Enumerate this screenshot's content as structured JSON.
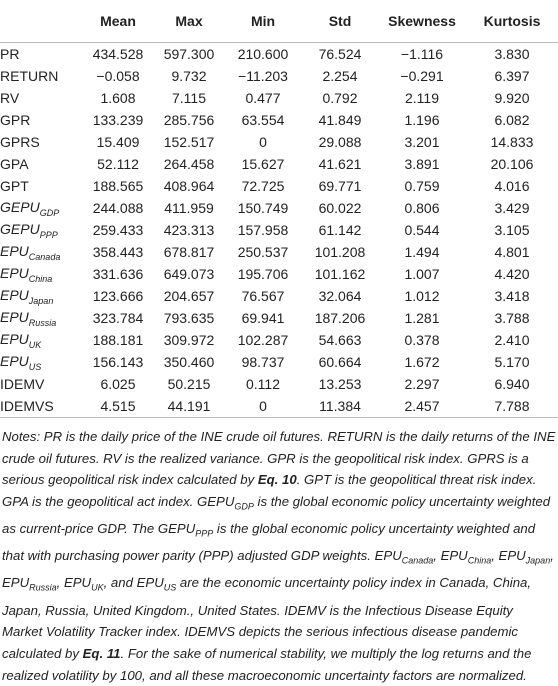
{
  "table": {
    "columns": [
      "Mean",
      "Max",
      "Min",
      "Std",
      "Skewness",
      "Kurtosis"
    ],
    "rows": [
      {
        "label": "PR",
        "cells": [
          "434.528",
          "597.300",
          "210.600",
          "76.524",
          "−1.116",
          "3.830"
        ]
      },
      {
        "label": "RETURN",
        "cells": [
          "−0.058",
          "9.732",
          "−11.203",
          "2.254",
          "−0.291",
          "6.397"
        ]
      },
      {
        "label": "RV",
        "cells": [
          "1.608",
          "7.115",
          "0.477",
          "0.792",
          "2.119",
          "9.920"
        ]
      },
      {
        "label": "GPR",
        "cells": [
          "133.239",
          "285.756",
          "63.554",
          "41.849",
          "1.196",
          "6.082"
        ]
      },
      {
        "label": "GPRS",
        "cells": [
          "15.409",
          "152.517",
          "0",
          "29.088",
          "3.201",
          "14.833"
        ]
      },
      {
        "label": "GPA",
        "cells": [
          "52.112",
          "264.458",
          "15.627",
          "41.621",
          "3.891",
          "20.106"
        ]
      },
      {
        "label": "GPT",
        "cells": [
          "188.565",
          "408.964",
          "72.725",
          "69.771",
          "0.759",
          "4.016"
        ]
      },
      {
        "label": "GEPU",
        "sub": "GDP",
        "cells": [
          "244.088",
          "411.959",
          "150.749",
          "60.022",
          "0.806",
          "3.429"
        ]
      },
      {
        "label": "GEPU",
        "sub": "PPP",
        "cells": [
          "259.433",
          "423.313",
          "157.958",
          "61.142",
          "0.544",
          "3.105"
        ]
      },
      {
        "label": "EPU",
        "sub": "Canada",
        "cells": [
          "358.443",
          "678.817",
          "250.537",
          "101.208",
          "1.494",
          "4.801"
        ]
      },
      {
        "label": "EPU",
        "sub": "China",
        "cells": [
          "331.636",
          "649.073",
          "195.706",
          "101.162",
          "1.007",
          "4.420"
        ]
      },
      {
        "label": "EPU",
        "sub": "Japan",
        "cells": [
          "123.666",
          "204.657",
          "76.567",
          "32.064",
          "1.012",
          "3.418"
        ]
      },
      {
        "label": "EPU",
        "sub": "Russia",
        "cells": [
          "323.784",
          "793.635",
          "69.941",
          "187.206",
          "1.281",
          "3.788"
        ]
      },
      {
        "label": "EPU",
        "sub": "UK",
        "cells": [
          "188.181",
          "309.972",
          "102.287",
          "54.663",
          "0.378",
          "2.410"
        ]
      },
      {
        "label": "EPU",
        "sub": "US",
        "cells": [
          "156.143",
          "350.460",
          "98.737",
          "60.664",
          "1.672",
          "5.170"
        ]
      },
      {
        "label": "IDEMV",
        "cells": [
          "6.025",
          "50.215",
          "0.112",
          "13.253",
          "2.297",
          "6.940"
        ]
      },
      {
        "label": "IDEMVS",
        "cells": [
          "4.515",
          "44.191",
          "0",
          "11.384",
          "2.457",
          "7.788"
        ]
      }
    ]
  },
  "notes": [
    "Notes: PR is the daily price of the INE crude oil futures. RETURN is the daily returns of the INE crude oil futures. RV is the realized variance. GPR is the geopolitical risk index. GPRS is a serious geopolitical risk index calculated by ",
    {
      "text": "Eq. 10",
      "style": "bold"
    },
    ". GPT is the geopolitical threat risk index. GPA is the geopolitical act index. GEPU",
    {
      "text": "GDP",
      "style": "sub"
    },
    " is the global economic policy uncertainty weighted as current-price GDP. The GEPU",
    {
      "text": "PPP",
      "style": "sub"
    },
    " is the global economic policy uncertainty weighted and that with purchasing power parity (PPP) adjusted GDP weights. EPU",
    {
      "text": "Canada",
      "style": "sub"
    },
    ", EPU",
    {
      "text": "China",
      "style": "sub"
    },
    ", EPU",
    {
      "text": "Japan",
      "style": "sub"
    },
    ", EPU",
    {
      "text": "Russia",
      "style": "sub"
    },
    ", EPU",
    {
      "text": "UK",
      "style": "sub"
    },
    ", and EPU",
    {
      "text": "US",
      "style": "sub"
    },
    " are the economic uncertainty policy index in Canada, China, Japan, Russia, United Kingdom., United States. IDEMV is the Infectious Disease Equity Market Volatility Tracker index. IDEMVS depicts the serious infectious disease pandemic calculated by ",
    {
      "text": "Eq. 11",
      "style": "bold"
    },
    ". For the sake of numerical stability, we multiply the log returns and the realized volatility by 100, and all these macroeconomic uncertainty factors are normalized."
  ]
}
